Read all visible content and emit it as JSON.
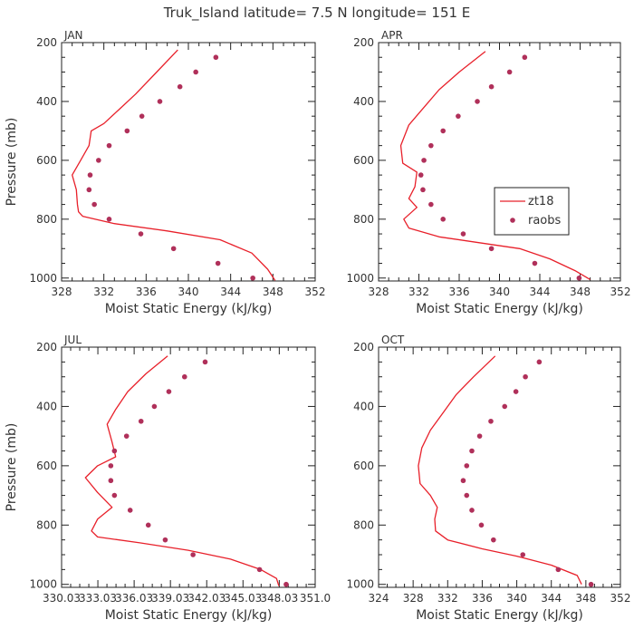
{
  "title": "Truk_Island  latitude= 7.5 N longitude= 151 E",
  "colors": {
    "model": "#e8202a",
    "obs": "#b0305a",
    "frame": "#222222",
    "text": "#333333"
  },
  "legend": {
    "model_label": "zt18",
    "obs_label": "raobs"
  },
  "chart_data": [
    {
      "type": "line",
      "panel": "JAN",
      "title": "JAN",
      "xlabel": "Moist Static Energy (kJ/kg)",
      "ylabel": "Pressure (mb)",
      "xlim": [
        328,
        352
      ],
      "ylim": [
        1010,
        200
      ],
      "xticks": [
        328,
        332,
        336,
        340,
        344,
        348,
        352
      ],
      "xtick_labels": [
        "328",
        "332",
        "336",
        "340",
        "344",
        "348",
        "352"
      ],
      "yticks": [
        200,
        400,
        600,
        800,
        1000
      ],
      "ytick_labels": [
        "200",
        "400",
        "600",
        "800",
        "1000"
      ],
      "series": [
        {
          "name": "zt18",
          "style": "line",
          "points": [
            [
              339.0,
              225
            ],
            [
              337.0,
              300
            ],
            [
              335.0,
              375
            ],
            [
              333.5,
              425
            ],
            [
              332.0,
              475
            ],
            [
              330.8,
              500
            ],
            [
              330.6,
              550
            ],
            [
              329.8,
              600
            ],
            [
              329.0,
              650
            ],
            [
              329.4,
              700
            ],
            [
              329.5,
              750
            ],
            [
              329.6,
              775
            ],
            [
              330.0,
              790
            ],
            [
              333.0,
              815
            ],
            [
              338.0,
              840
            ],
            [
              343.0,
              870
            ],
            [
              346.0,
              915
            ],
            [
              347.5,
              970
            ],
            [
              348.2,
              1008
            ]
          ]
        },
        {
          "name": "raobs",
          "style": "points",
          "points": [
            [
              342.6,
              250
            ],
            [
              340.7,
              300
            ],
            [
              339.2,
              350
            ],
            [
              337.3,
              400
            ],
            [
              335.6,
              450
            ],
            [
              334.2,
              500
            ],
            [
              332.5,
              550
            ],
            [
              331.5,
              600
            ],
            [
              330.7,
              650
            ],
            [
              330.6,
              700
            ],
            [
              331.1,
              750
            ],
            [
              332.5,
              800
            ],
            [
              335.5,
              850
            ],
            [
              338.6,
              900
            ],
            [
              342.8,
              950
            ],
            [
              346.1,
              1000
            ]
          ]
        }
      ]
    },
    {
      "type": "line",
      "panel": "APR",
      "title": "APR",
      "xlabel": "Moist Static Energy (kJ/kg)",
      "ylabel": "",
      "xlim": [
        328,
        352
      ],
      "ylim": [
        1010,
        200
      ],
      "xticks": [
        328,
        332,
        336,
        340,
        344,
        348,
        352
      ],
      "xtick_labels": [
        "328",
        "332",
        "336",
        "340",
        "344",
        "348",
        "352"
      ],
      "yticks": [
        200,
        400,
        600,
        800,
        1000
      ],
      "ytick_labels": [
        "200",
        "400",
        "600",
        "800",
        "1000"
      ],
      "legend_position": "right",
      "series": [
        {
          "name": "zt18",
          "style": "line",
          "points": [
            [
              338.6,
              230
            ],
            [
              336.0,
              300
            ],
            [
              334.0,
              360
            ],
            [
              332.5,
              420
            ],
            [
              331.0,
              480
            ],
            [
              330.2,
              550
            ],
            [
              330.4,
              610
            ],
            [
              331.8,
              640
            ],
            [
              331.6,
              690
            ],
            [
              331.0,
              730
            ],
            [
              331.8,
              760
            ],
            [
              330.5,
              800
            ],
            [
              331.0,
              830
            ],
            [
              334.0,
              860
            ],
            [
              338.0,
              880
            ],
            [
              342.0,
              900
            ],
            [
              345.0,
              935
            ],
            [
              347.5,
              975
            ],
            [
              349.0,
              1005
            ]
          ]
        },
        {
          "name": "raobs",
          "style": "points",
          "points": [
            [
              342.5,
              250
            ],
            [
              341.0,
              300
            ],
            [
              339.2,
              350
            ],
            [
              337.8,
              400
            ],
            [
              335.9,
              450
            ],
            [
              334.4,
              500
            ],
            [
              333.2,
              550
            ],
            [
              332.5,
              600
            ],
            [
              332.2,
              650
            ],
            [
              332.4,
              700
            ],
            [
              333.2,
              750
            ],
            [
              334.4,
              800
            ],
            [
              336.4,
              850
            ],
            [
              339.2,
              900
            ],
            [
              343.5,
              950
            ],
            [
              347.9,
              1000
            ]
          ]
        }
      ]
    },
    {
      "type": "line",
      "panel": "JUL",
      "title": "JUL",
      "xlabel": "Moist Static Energy (kJ/kg)",
      "ylabel": "Pressure (mb)",
      "xlim": [
        330.03,
        351.0
      ],
      "ylim": [
        1010,
        200
      ],
      "xticks": [
        330.03,
        333.03,
        336.03,
        339.03,
        342.03,
        345.03,
        348.03,
        351.0
      ],
      "xtick_labels": [
        "330.03",
        "333.03",
        "336.03",
        "339.03",
        "342.03",
        "345.03",
        "348.03",
        "351.0"
      ],
      "yticks": [
        200,
        400,
        600,
        800,
        1000
      ],
      "ytick_labels": [
        "200",
        "400",
        "600",
        "800",
        "1000"
      ],
      "series": [
        {
          "name": "zt18",
          "style": "line",
          "points": [
            [
              338.8,
              230
            ],
            [
              337.0,
              290
            ],
            [
              335.5,
              350
            ],
            [
              334.5,
              410
            ],
            [
              333.8,
              460
            ],
            [
              334.2,
              520
            ],
            [
              334.5,
              570
            ],
            [
              333.0,
              600
            ],
            [
              332.0,
              640
            ],
            [
              333.0,
              690
            ],
            [
              334.2,
              740
            ],
            [
              333.0,
              780
            ],
            [
              332.5,
              820
            ],
            [
              333.0,
              840
            ],
            [
              336.5,
              860
            ],
            [
              340.5,
              885
            ],
            [
              344.0,
              915
            ],
            [
              346.5,
              950
            ],
            [
              347.8,
              980
            ],
            [
              348.0,
              1005
            ]
          ]
        },
        {
          "name": "raobs",
          "style": "points",
          "points": [
            [
              341.9,
              250
            ],
            [
              340.2,
              300
            ],
            [
              338.9,
              350
            ],
            [
              337.7,
              400
            ],
            [
              336.6,
              450
            ],
            [
              335.4,
              500
            ],
            [
              334.4,
              550
            ],
            [
              334.1,
              600
            ],
            [
              334.1,
              650
            ],
            [
              334.4,
              700
            ],
            [
              335.7,
              750
            ],
            [
              337.2,
              800
            ],
            [
              338.6,
              850
            ],
            [
              340.9,
              900
            ],
            [
              346.4,
              950
            ],
            [
              348.6,
              1000
            ]
          ]
        }
      ]
    },
    {
      "type": "line",
      "panel": "OCT",
      "title": "OCT",
      "xlabel": "Moist Static Energy (kJ/kg)",
      "ylabel": "",
      "xlim": [
        324,
        352
      ],
      "ylim": [
        1010,
        200
      ],
      "xticks": [
        324,
        328,
        332,
        336,
        340,
        344,
        348,
        352
      ],
      "xtick_labels": [
        "324",
        "328",
        "332",
        "336",
        "340",
        "344",
        "348",
        "352"
      ],
      "yticks": [
        200,
        400,
        600,
        800,
        1000
      ],
      "ytick_labels": [
        "200",
        "400",
        "600",
        "800",
        "1000"
      ],
      "series": [
        {
          "name": "zt18",
          "style": "line",
          "points": [
            [
              337.5,
              230
            ],
            [
              335.0,
              300
            ],
            [
              333.0,
              360
            ],
            [
              331.5,
              420
            ],
            [
              330.0,
              480
            ],
            [
              329.0,
              540
            ],
            [
              328.6,
              600
            ],
            [
              328.8,
              660
            ],
            [
              330.0,
              700
            ],
            [
              330.8,
              740
            ],
            [
              330.5,
              780
            ],
            [
              330.6,
              820
            ],
            [
              332.0,
              850
            ],
            [
              336.0,
              880
            ],
            [
              340.0,
              905
            ],
            [
              344.0,
              935
            ],
            [
              347.0,
              970
            ],
            [
              347.5,
              1000
            ]
          ]
        },
        {
          "name": "raobs",
          "style": "points",
          "points": [
            [
              342.6,
              250
            ],
            [
              341.0,
              300
            ],
            [
              339.9,
              350
            ],
            [
              338.6,
              400
            ],
            [
              337.0,
              450
            ],
            [
              335.7,
              500
            ],
            [
              334.8,
              550
            ],
            [
              334.2,
              600
            ],
            [
              333.8,
              650
            ],
            [
              334.2,
              700
            ],
            [
              334.8,
              750
            ],
            [
              335.9,
              800
            ],
            [
              337.3,
              850
            ],
            [
              340.7,
              900
            ],
            [
              344.8,
              950
            ],
            [
              348.6,
              1000
            ]
          ]
        }
      ]
    }
  ]
}
